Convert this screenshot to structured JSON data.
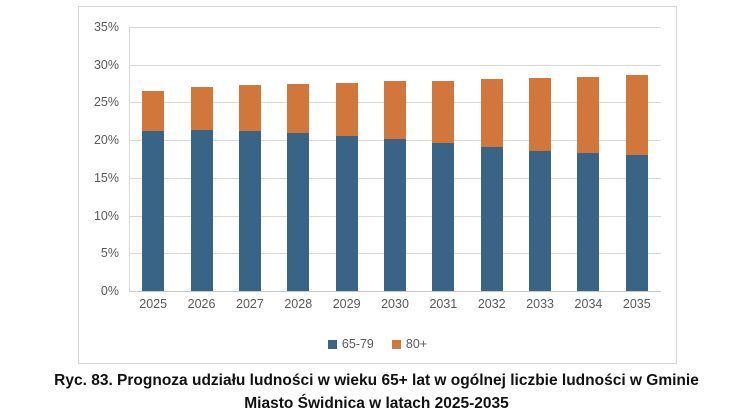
{
  "figure": {
    "caption_line1": "Ryc. 83. Prognoza udziału ludności w wieku 65+ lat w ogólnej liczbie ludności w Gminie",
    "caption_line2": "Miasto Świdnica w latach 2025-2035"
  },
  "chart_data": {
    "type": "bar",
    "stacked": true,
    "title": "",
    "xlabel": "",
    "ylabel": "",
    "categories": [
      "2025",
      "2026",
      "2027",
      "2028",
      "2029",
      "2030",
      "2031",
      "2032",
      "2033",
      "2034",
      "2035"
    ],
    "series": [
      {
        "name": "65-79",
        "color": "#3A6485",
        "values": [
          21.2,
          21.3,
          21.2,
          20.9,
          20.5,
          20.1,
          19.6,
          19.1,
          18.6,
          18.3,
          18.0
        ]
      },
      {
        "name": "80+",
        "color": "#D2773B",
        "values": [
          5.3,
          5.7,
          6.1,
          6.6,
          7.1,
          7.7,
          8.3,
          9.0,
          9.6,
          10.1,
          10.6
        ]
      }
    ],
    "stack_totals": [
      26.5,
      27.0,
      27.3,
      27.5,
      27.6,
      27.8,
      27.9,
      28.1,
      28.2,
      28.4,
      28.6
    ],
    "y_axis": {
      "min": 0,
      "max": 35,
      "step": 5,
      "unit": "%",
      "tick_labels": [
        "0%",
        "5%",
        "10%",
        "15%",
        "20%",
        "25%",
        "30%",
        "35%"
      ]
    },
    "legend_position": "bottom",
    "grid": true,
    "colors": {
      "gridline": "#d9d9d9",
      "frame_border": "#d6d6d6",
      "axis_text": "#595959"
    }
  }
}
